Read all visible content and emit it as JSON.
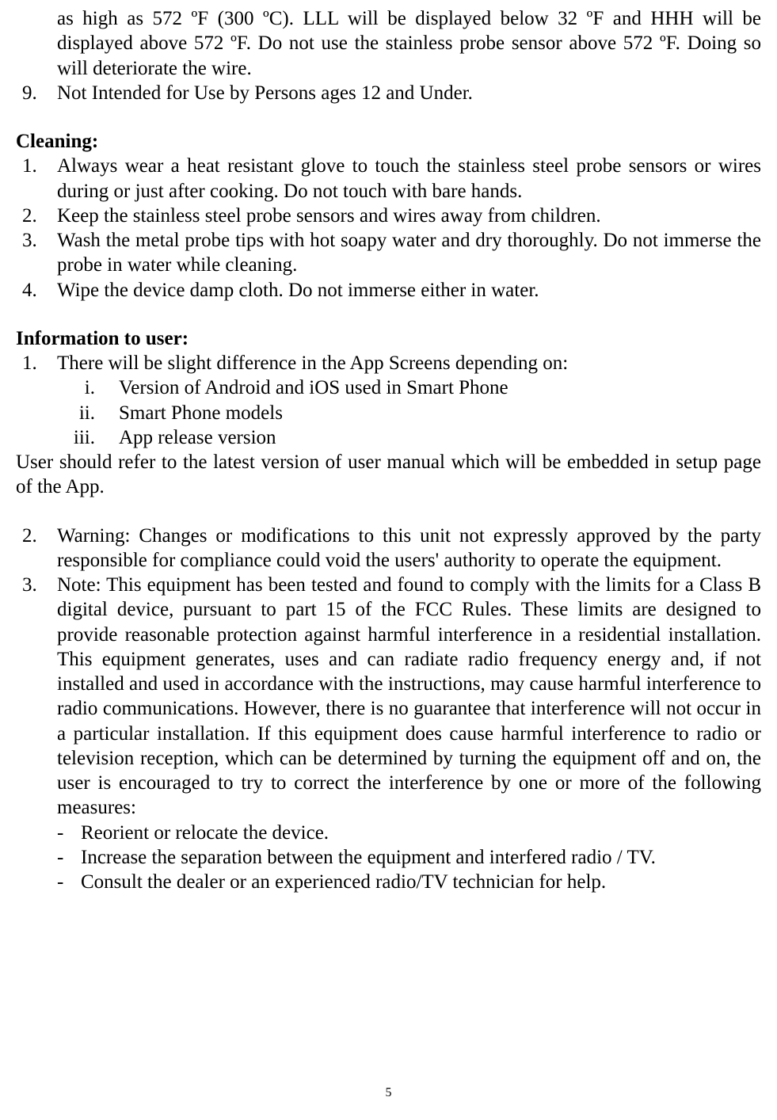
{
  "colors": {
    "background": "#ffffff",
    "text": "#000000"
  },
  "typography": {
    "font_family": "Times New Roman",
    "body_size_pt": 19,
    "heading_weight": "bold"
  },
  "page_number": "5",
  "continued_item": {
    "text": "as high as 572 ºF (300 ºC). LLL will be displayed below 32 ºF and HHH will be displayed above 572 ºF. Do not use the stainless probe sensor above 572 ºF. Doing so will deteriorate the wire."
  },
  "item_9": {
    "num": "9.",
    "text": "Not Intended for Use by Persons ages 12 and Under."
  },
  "cleaning": {
    "heading": "Cleaning:",
    "items": [
      {
        "num": "1.",
        "text": "Always wear a heat resistant glove to touch the stainless steel probe sensors or wires during or just after cooking. Do not touch with bare hands."
      },
      {
        "num": "2.",
        "text": "Keep the stainless steel probe sensors and wires away from children."
      },
      {
        "num": "3.",
        "text": "Wash the metal probe tips with hot soapy water and dry thoroughly. Do not immerse the probe in water while cleaning."
      },
      {
        "num": "4.",
        "text": "Wipe the device damp cloth. Do not immerse either in water."
      }
    ]
  },
  "info": {
    "heading": "Information to user:",
    "item1": {
      "num": "1.",
      "text": "There will be slight difference in the App Screens depending on:",
      "sub": [
        {
          "num": "i.",
          "text": "Version of Android and iOS used in Smart Phone"
        },
        {
          "num": "ii.",
          "text": "Smart Phone models"
        },
        {
          "num": "iii.",
          "text": "App release version"
        }
      ]
    },
    "note": "User should refer to the latest version of user manual which will be embedded in setup page of the App.",
    "item2": {
      "num": "2.",
      "text": "Warning: Changes or modifications to this unit not expressly approved by the party responsible for compliance could void the users' authority to operate the equipment."
    },
    "item3": {
      "num": "3.",
      "text": "Note: This equipment has been tested and found to comply with the limits for a Class B digital device, pursuant to part 15 of the FCC Rules. These limits are designed to provide reasonable protection against harmful interference in a residential installation. This equipment generates, uses and can radiate radio frequency energy and, if not installed and used in accordance with the instructions, may cause harmful interference to radio communications. However, there is no guarantee that interference will not occur in a particular installation. If this equipment does cause harmful interference to radio or television reception, which can be determined by turning the equipment off and on, the user is encouraged to try to correct the interference by one or more of the following measures:",
      "dashes": [
        {
          "m": "-",
          "text": "Reorient or relocate the device."
        },
        {
          "m": "-",
          "text": "Increase the separation between the equipment and interfered radio / TV."
        },
        {
          "m": "-",
          "text": "Consult the dealer or an experienced radio/TV technician for help."
        }
      ]
    }
  }
}
